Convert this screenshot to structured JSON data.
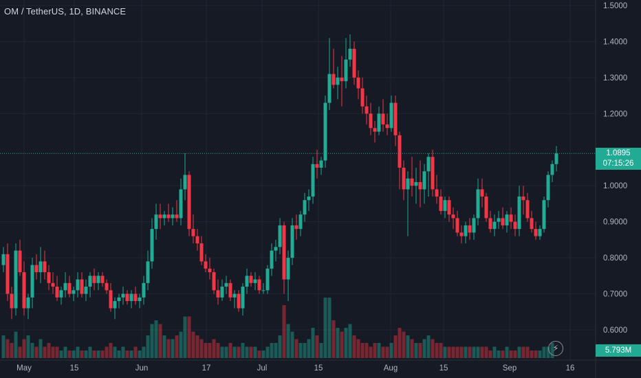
{
  "header": {
    "symbol_title": "OM / TetherUS, 1D, BINANCE"
  },
  "price_scale": {
    "labels": [
      "1.5000",
      "1.4000",
      "1.3000",
      "1.2000",
      "1.0000",
      "0.9000",
      "0.8000",
      "0.7000",
      "0.6000"
    ],
    "current_price": "1.0895",
    "countdown": "07:15:26",
    "volume_label": "5.793M",
    "flash_icon": "lightning-icon"
  },
  "time_scale": {
    "labels": [
      "May",
      "15",
      "Jun",
      "17",
      "Jul",
      "15",
      "Aug",
      "15",
      "Sep",
      "16"
    ]
  },
  "colors": {
    "background": "#161a25",
    "up": "#22ab94",
    "down": "#f23645",
    "grid": "#232632",
    "text": "#d1d4dc"
  },
  "chart_data": {
    "type": "candlestick",
    "symbol": "OM / TetherUS",
    "interval": "1D",
    "exchange": "BINANCE",
    "ylim": [
      0.5,
      1.5
    ],
    "last_price": 1.0895,
    "candles": [
      [
        0.78,
        0.83,
        0.76,
        0.81
      ],
      [
        0.81,
        0.84,
        0.68,
        0.7
      ],
      [
        0.7,
        0.72,
        0.63,
        0.66
      ],
      [
        0.66,
        0.84,
        0.64,
        0.82
      ],
      [
        0.82,
        0.85,
        0.75,
        0.76
      ],
      [
        0.76,
        0.79,
        0.64,
        0.66
      ],
      [
        0.66,
        0.7,
        0.63,
        0.69
      ],
      [
        0.69,
        0.8,
        0.66,
        0.78
      ],
      [
        0.78,
        0.81,
        0.74,
        0.76
      ],
      [
        0.76,
        0.83,
        0.73,
        0.79
      ],
      [
        0.79,
        0.82,
        0.74,
        0.76
      ],
      [
        0.76,
        0.78,
        0.71,
        0.73
      ],
      [
        0.73,
        0.76,
        0.7,
        0.72
      ],
      [
        0.72,
        0.75,
        0.68,
        0.69
      ],
      [
        0.69,
        0.72,
        0.67,
        0.71
      ],
      [
        0.71,
        0.76,
        0.69,
        0.73
      ],
      [
        0.73,
        0.75,
        0.69,
        0.7
      ],
      [
        0.7,
        0.72,
        0.68,
        0.71
      ],
      [
        0.71,
        0.76,
        0.69,
        0.74
      ],
      [
        0.74,
        0.76,
        0.69,
        0.7
      ],
      [
        0.7,
        0.74,
        0.68,
        0.72
      ],
      [
        0.72,
        0.76,
        0.69,
        0.75
      ],
      [
        0.75,
        0.77,
        0.71,
        0.73
      ],
      [
        0.73,
        0.76,
        0.71,
        0.75
      ],
      [
        0.75,
        0.76,
        0.72,
        0.73
      ],
      [
        0.73,
        0.74,
        0.7,
        0.71
      ],
      [
        0.71,
        0.73,
        0.65,
        0.66
      ],
      [
        0.66,
        0.69,
        0.63,
        0.68
      ],
      [
        0.68,
        0.7,
        0.66,
        0.69
      ],
      [
        0.69,
        0.72,
        0.67,
        0.7
      ],
      [
        0.7,
        0.71,
        0.67,
        0.68
      ],
      [
        0.68,
        0.71,
        0.66,
        0.7
      ],
      [
        0.7,
        0.72,
        0.67,
        0.68
      ],
      [
        0.68,
        0.7,
        0.66,
        0.69
      ],
      [
        0.69,
        0.75,
        0.67,
        0.73
      ],
      [
        0.73,
        0.82,
        0.71,
        0.79
      ],
      [
        0.79,
        0.91,
        0.77,
        0.88
      ],
      [
        0.88,
        0.95,
        0.85,
        0.92
      ],
      [
        0.92,
        0.95,
        0.88,
        0.91
      ],
      [
        0.91,
        0.93,
        0.89,
        0.92
      ],
      [
        0.92,
        0.95,
        0.9,
        0.91
      ],
      [
        0.91,
        0.94,
        0.89,
        0.92
      ],
      [
        0.92,
        0.96,
        0.9,
        0.91
      ],
      [
        0.91,
        1.02,
        0.89,
        0.99
      ],
      [
        0.99,
        1.09,
        0.96,
        1.03
      ],
      [
        1.03,
        1.04,
        0.86,
        0.88
      ],
      [
        0.88,
        0.92,
        0.84,
        0.86
      ],
      [
        0.86,
        0.88,
        0.82,
        0.84
      ],
      [
        0.84,
        0.86,
        0.78,
        0.79
      ],
      [
        0.79,
        0.81,
        0.76,
        0.77
      ],
      [
        0.77,
        0.8,
        0.74,
        0.76
      ],
      [
        0.76,
        0.77,
        0.7,
        0.71
      ],
      [
        0.71,
        0.74,
        0.67,
        0.69
      ],
      [
        0.69,
        0.74,
        0.68,
        0.72
      ],
      [
        0.72,
        0.75,
        0.7,
        0.73
      ],
      [
        0.73,
        0.74,
        0.68,
        0.69
      ],
      [
        0.69,
        0.71,
        0.66,
        0.7
      ],
      [
        0.7,
        0.71,
        0.65,
        0.66
      ],
      [
        0.66,
        0.73,
        0.64,
        0.72
      ],
      [
        0.72,
        0.77,
        0.7,
        0.75
      ],
      [
        0.75,
        0.76,
        0.72,
        0.73
      ],
      [
        0.73,
        0.76,
        0.71,
        0.74
      ],
      [
        0.74,
        0.75,
        0.7,
        0.71
      ],
      [
        0.71,
        0.73,
        0.7,
        0.71
      ],
      [
        0.71,
        0.78,
        0.7,
        0.77
      ],
      [
        0.77,
        0.84,
        0.75,
        0.82
      ],
      [
        0.82,
        0.85,
        0.79,
        0.83
      ],
      [
        0.83,
        0.91,
        0.81,
        0.89
      ],
      [
        0.89,
        0.9,
        0.7,
        0.74
      ],
      [
        0.74,
        0.82,
        0.68,
        0.8
      ],
      [
        0.8,
        0.91,
        0.78,
        0.89
      ],
      [
        0.89,
        0.92,
        0.85,
        0.88
      ],
      [
        0.88,
        0.93,
        0.86,
        0.92
      ],
      [
        0.92,
        0.98,
        0.9,
        0.96
      ],
      [
        0.96,
        0.99,
        0.93,
        0.97
      ],
      [
        0.97,
        1.08,
        0.95,
        1.06
      ],
      [
        1.06,
        1.1,
        1.02,
        1.05
      ],
      [
        1.05,
        1.08,
        1.03,
        1.07
      ],
      [
        1.07,
        1.25,
        1.05,
        1.23
      ],
      [
        1.23,
        1.41,
        1.21,
        1.31
      ],
      [
        1.31,
        1.38,
        1.27,
        1.28
      ],
      [
        1.28,
        1.33,
        1.24,
        1.3
      ],
      [
        1.3,
        1.36,
        1.22,
        1.29
      ],
      [
        1.29,
        1.41,
        1.27,
        1.35
      ],
      [
        1.35,
        1.42,
        1.33,
        1.38
      ],
      [
        1.38,
        1.4,
        1.28,
        1.3
      ],
      [
        1.3,
        1.32,
        1.24,
        1.27
      ],
      [
        1.27,
        1.3,
        1.2,
        1.22
      ],
      [
        1.22,
        1.25,
        1.17,
        1.2
      ],
      [
        1.2,
        1.23,
        1.14,
        1.16
      ],
      [
        1.16,
        1.18,
        1.12,
        1.15
      ],
      [
        1.15,
        1.22,
        1.14,
        1.2
      ],
      [
        1.2,
        1.24,
        1.15,
        1.17
      ],
      [
        1.17,
        1.2,
        1.14,
        1.16
      ],
      [
        1.16,
        1.25,
        1.15,
        1.23
      ],
      [
        1.23,
        1.25,
        1.11,
        1.14
      ],
      [
        1.14,
        1.15,
        0.99,
        1.05
      ],
      [
        1.05,
        1.07,
        0.96,
        0.99
      ],
      [
        0.99,
        1.04,
        0.86,
        1.02
      ],
      [
        1.02,
        1.08,
        0.97,
        1.0
      ],
      [
        1.0,
        1.05,
        0.95,
        1.01
      ],
      [
        1.01,
        1.07,
        0.94,
        0.99
      ],
      [
        0.99,
        1.06,
        0.95,
        1.04
      ],
      [
        1.04,
        1.09,
        0.97,
        1.08
      ],
      [
        1.08,
        1.1,
        0.97,
        0.99
      ],
      [
        0.99,
        1.03,
        0.95,
        0.97
      ],
      [
        0.97,
        0.99,
        0.92,
        0.93
      ],
      [
        0.93,
        0.97,
        0.91,
        0.96
      ],
      [
        0.96,
        0.97,
        0.9,
        0.92
      ],
      [
        0.92,
        0.94,
        0.88,
        0.91
      ],
      [
        0.91,
        0.93,
        0.86,
        0.87
      ],
      [
        0.87,
        0.89,
        0.84,
        0.86
      ],
      [
        0.86,
        0.9,
        0.84,
        0.89
      ],
      [
        0.89,
        0.91,
        0.85,
        0.87
      ],
      [
        0.87,
        0.92,
        0.85,
        0.91
      ],
      [
        0.91,
        1.02,
        0.89,
        0.99
      ],
      [
        0.99,
        1.02,
        0.94,
        0.97
      ],
      [
        0.97,
        0.98,
        0.9,
        0.91
      ],
      [
        0.91,
        0.93,
        0.87,
        0.88
      ],
      [
        0.88,
        0.92,
        0.86,
        0.9
      ],
      [
        0.9,
        0.93,
        0.88,
        0.91
      ],
      [
        0.91,
        0.94,
        0.88,
        0.89
      ],
      [
        0.89,
        0.93,
        0.87,
        0.92
      ],
      [
        0.92,
        0.94,
        0.88,
        0.9
      ],
      [
        0.9,
        0.92,
        0.86,
        0.88
      ],
      [
        0.88,
        1.0,
        0.86,
        0.97
      ],
      [
        0.97,
        1.0,
        0.92,
        0.96
      ],
      [
        0.96,
        0.98,
        0.9,
        0.91
      ],
      [
        0.91,
        0.93,
        0.87,
        0.88
      ],
      [
        0.88,
        0.9,
        0.85,
        0.86
      ],
      [
        0.86,
        0.89,
        0.85,
        0.88
      ],
      [
        0.88,
        0.97,
        0.87,
        0.96
      ],
      [
        0.96,
        1.04,
        0.94,
        1.03
      ],
      [
        1.03,
        1.07,
        1.01,
        1.06
      ],
      [
        1.06,
        1.11,
        1.04,
        1.0895
      ]
    ],
    "volume": [
      0.6,
      0.5,
      0.4,
      0.7,
      0.3,
      0.5,
      0.6,
      0.4,
      0.3,
      0.5,
      0.3,
      0.4,
      0.3,
      0.3,
      0.2,
      0.3,
      0.2,
      0.2,
      0.3,
      0.2,
      0.2,
      0.3,
      0.2,
      0.2,
      0.2,
      0.3,
      0.4,
      0.3,
      0.2,
      0.3,
      0.2,
      0.2,
      0.3,
      0.2,
      0.3,
      0.6,
      0.9,
      1.0,
      0.9,
      0.6,
      0.5,
      0.5,
      0.6,
      0.7,
      1.1,
      1.1,
      0.7,
      0.6,
      0.5,
      0.4,
      0.4,
      0.5,
      0.4,
      0.3,
      0.3,
      0.4,
      0.3,
      0.3,
      0.4,
      0.3,
      0.3,
      0.3,
      0.2,
      0.2,
      0.3,
      0.4,
      0.4,
      0.6,
      1.4,
      0.9,
      0.7,
      0.5,
      0.4,
      0.4,
      0.5,
      0.8,
      0.6,
      0.4,
      1.6,
      1.6,
      1.0,
      0.8,
      0.7,
      0.8,
      0.9,
      0.6,
      0.5,
      0.4,
      0.4,
      0.3,
      0.4,
      0.4,
      0.3,
      0.3,
      0.4,
      0.6,
      0.8,
      0.7,
      0.6,
      0.5,
      0.4,
      0.4,
      0.5,
      0.6,
      0.5,
      0.4,
      0.4,
      0.3,
      0.3,
      0.3,
      0.3,
      0.3,
      0.3,
      0.3,
      0.3,
      0.3,
      0.3,
      0.3,
      0.2,
      0.3,
      0.2,
      0.2,
      0.3,
      0.2,
      0.2,
      0.3,
      0.3,
      0.3,
      0.2,
      0.2,
      0.2,
      0.3,
      0.3,
      0.4
    ]
  }
}
